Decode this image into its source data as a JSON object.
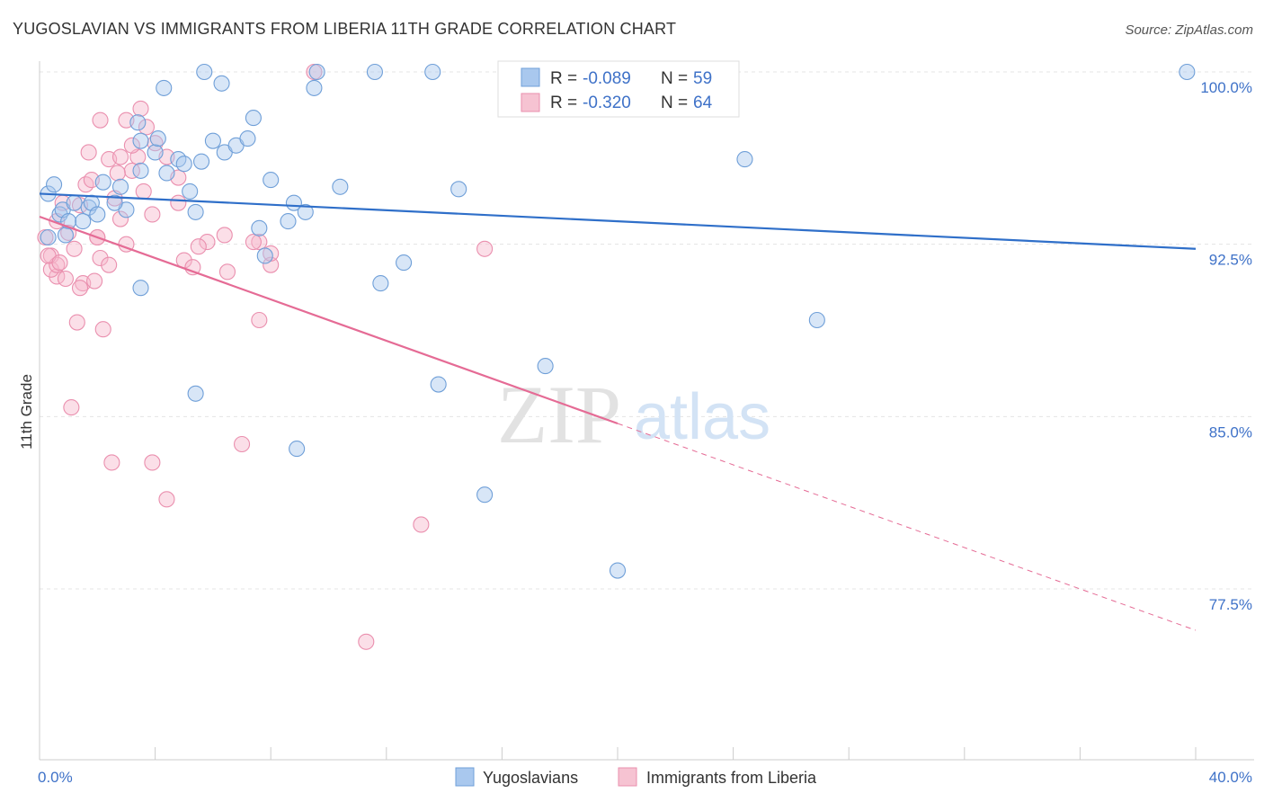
{
  "title": "YUGOSLAVIAN VS IMMIGRANTS FROM LIBERIA 11TH GRADE CORRELATION CHART",
  "source": "Source: ZipAtlas.com",
  "watermark": {
    "zip": "ZIP",
    "atlas": "atlas"
  },
  "colors": {
    "blue_fill": "#a9c8ee",
    "blue_stroke": "#6f9fd8",
    "blue_line": "#2f6fc9",
    "pink_fill": "#f6b8cb",
    "pink_stroke": "#ea8fae",
    "pink_line": "#e56b95",
    "tick_label": "#3f72c8"
  },
  "legend": {
    "rows": [
      {
        "r_label": "R = ",
        "r_value": "-0.089",
        "n_label": "N = ",
        "n_value": "59"
      },
      {
        "r_label": "R = ",
        "r_value": "-0.320",
        "n_label": "N = ",
        "n_value": "64"
      }
    ]
  },
  "bottom_legend": [
    "Yugoslavians",
    "Immigrants from Liberia"
  ],
  "chart_data": {
    "type": "scatter",
    "title": "YUGOSLAVIAN VS IMMIGRANTS FROM LIBERIA 11TH GRADE CORRELATION CHART",
    "xlabel": "",
    "ylabel": "11th Grade",
    "xlim": [
      0.0,
      40.0
    ],
    "ylim": [
      70.0,
      100.5
    ],
    "x_tick_labels": [
      "0.0%",
      "40.0%"
    ],
    "y_ticks": [
      100.0,
      92.5,
      85.0,
      77.5
    ],
    "y_tick_labels": [
      "100.0%",
      "92.5%",
      "85.0%",
      "77.5%"
    ],
    "grid": true,
    "legend_position": "top-center",
    "series": [
      {
        "name": "Yugoslavians",
        "r": -0.089,
        "n": 59,
        "trend": {
          "x": [
            0.0,
            40.0
          ],
          "y": [
            94.7,
            92.3
          ]
        },
        "points": [
          [
            0.3,
            94.7
          ],
          [
            0.5,
            95.1
          ],
          [
            0.7,
            93.8
          ],
          [
            0.8,
            94.0
          ],
          [
            1.0,
            93.5
          ],
          [
            1.2,
            94.3
          ],
          [
            0.9,
            92.9
          ],
          [
            0.3,
            92.8
          ],
          [
            1.5,
            93.5
          ],
          [
            1.7,
            94.1
          ],
          [
            1.8,
            94.3
          ],
          [
            2.0,
            93.8
          ],
          [
            2.2,
            95.2
          ],
          [
            2.8,
            95.0
          ],
          [
            3.0,
            94.0
          ],
          [
            3.5,
            97.0
          ],
          [
            4.0,
            96.5
          ],
          [
            4.4,
            95.6
          ],
          [
            4.8,
            96.2
          ],
          [
            5.0,
            96.0
          ],
          [
            5.2,
            94.8
          ],
          [
            5.4,
            93.9
          ],
          [
            5.6,
            96.1
          ],
          [
            6.0,
            97.0
          ],
          [
            6.4,
            96.5
          ],
          [
            6.8,
            96.8
          ],
          [
            7.4,
            98.0
          ],
          [
            8.0,
            95.3
          ],
          [
            8.6,
            93.5
          ],
          [
            8.8,
            94.3
          ],
          [
            9.2,
            93.9
          ],
          [
            10.4,
            95.0
          ],
          [
            4.3,
            99.3
          ],
          [
            5.7,
            100.0
          ],
          [
            6.3,
            99.5
          ],
          [
            9.6,
            100.0
          ],
          [
            11.6,
            100.0
          ],
          [
            13.6,
            100.0
          ],
          [
            9.5,
            99.3
          ],
          [
            3.4,
            97.8
          ],
          [
            4.1,
            97.1
          ],
          [
            3.5,
            95.7
          ],
          [
            2.6,
            94.3
          ],
          [
            7.2,
            97.1
          ],
          [
            7.6,
            93.2
          ],
          [
            7.8,
            92.0
          ],
          [
            11.8,
            90.8
          ],
          [
            12.6,
            91.7
          ],
          [
            14.5,
            94.9
          ],
          [
            17.5,
            87.2
          ],
          [
            24.4,
            96.2
          ],
          [
            26.9,
            89.2
          ],
          [
            5.4,
            86.0
          ],
          [
            13.8,
            86.4
          ],
          [
            8.9,
            83.6
          ],
          [
            15.4,
            81.6
          ],
          [
            20.0,
            78.3
          ],
          [
            39.7,
            100.0
          ],
          [
            3.5,
            90.6
          ]
        ]
      },
      {
        "name": "Immigrants from Liberia",
        "r": -0.32,
        "n": 64,
        "trend": {
          "x": [
            0.0,
            20.0
          ],
          "y": [
            93.7,
            84.7
          ]
        },
        "trend_dashed": {
          "x": [
            20.0,
            40.0
          ],
          "y": [
            84.7,
            75.7
          ]
        },
        "points": [
          [
            0.2,
            92.8
          ],
          [
            0.4,
            92.0
          ],
          [
            0.6,
            91.1
          ],
          [
            0.6,
            93.5
          ],
          [
            0.8,
            94.3
          ],
          [
            1.0,
            93.0
          ],
          [
            1.2,
            92.3
          ],
          [
            1.4,
            94.2
          ],
          [
            1.6,
            95.1
          ],
          [
            1.8,
            95.3
          ],
          [
            2.0,
            92.8
          ],
          [
            2.1,
            91.9
          ],
          [
            2.4,
            96.2
          ],
          [
            2.6,
            94.5
          ],
          [
            2.8,
            93.6
          ],
          [
            3.0,
            92.5
          ],
          [
            3.2,
            95.7
          ],
          [
            3.4,
            96.3
          ],
          [
            3.6,
            94.8
          ],
          [
            3.9,
            93.8
          ],
          [
            4.4,
            96.3
          ],
          [
            4.8,
            95.4
          ],
          [
            5.0,
            91.8
          ],
          [
            5.3,
            91.5
          ],
          [
            5.8,
            92.6
          ],
          [
            6.5,
            91.3
          ],
          [
            7.6,
            92.6
          ],
          [
            8.0,
            91.6
          ],
          [
            1.5,
            90.8
          ],
          [
            0.4,
            91.4
          ],
          [
            0.6,
            91.6
          ],
          [
            0.9,
            91.0
          ],
          [
            1.4,
            90.6
          ],
          [
            2.0,
            92.8
          ],
          [
            2.4,
            91.6
          ],
          [
            1.3,
            89.1
          ],
          [
            2.2,
            88.8
          ],
          [
            0.3,
            92.0
          ],
          [
            0.7,
            91.7
          ],
          [
            1.9,
            90.9
          ],
          [
            1.1,
            85.4
          ],
          [
            2.5,
            83.0
          ],
          [
            3.9,
            83.0
          ],
          [
            4.4,
            81.4
          ],
          [
            7.0,
            83.8
          ],
          [
            7.6,
            89.2
          ],
          [
            9.5,
            100.0
          ],
          [
            11.3,
            75.2
          ],
          [
            13.2,
            80.3
          ],
          [
            15.4,
            92.3
          ],
          [
            2.1,
            97.9
          ],
          [
            3.0,
            97.9
          ],
          [
            3.5,
            98.4
          ],
          [
            3.7,
            97.6
          ],
          [
            3.2,
            96.8
          ],
          [
            2.8,
            96.3
          ],
          [
            4.0,
            96.9
          ],
          [
            2.7,
            95.6
          ],
          [
            4.8,
            94.3
          ],
          [
            5.5,
            92.4
          ],
          [
            8.0,
            92.1
          ],
          [
            7.4,
            92.6
          ],
          [
            6.4,
            92.9
          ],
          [
            1.7,
            96.5
          ]
        ]
      }
    ]
  }
}
